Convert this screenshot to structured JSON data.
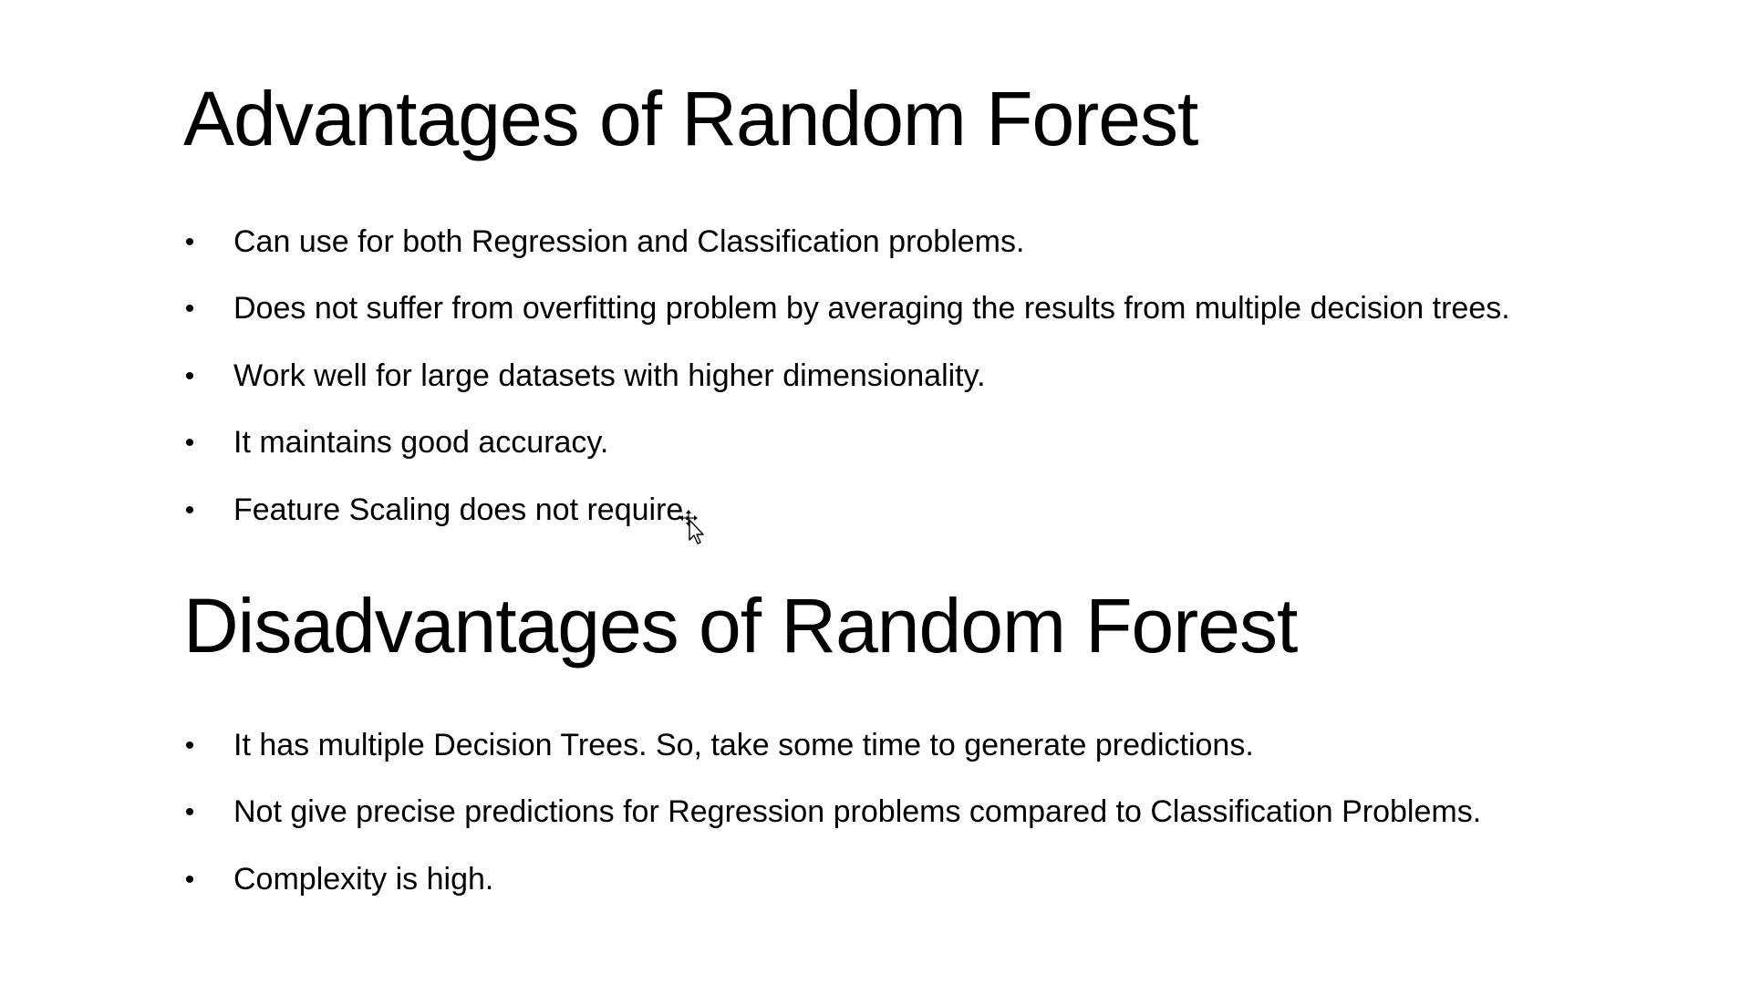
{
  "advantages": {
    "title": "Advantages of Random Forest",
    "items": [
      "Can use for both Regression and Classification problems.",
      "Does not suffer from overfitting problem by averaging the results from multiple decision trees.",
      "Work well for large datasets with higher dimensionality.",
      "It maintains good accuracy.",
      "Feature Scaling does not require."
    ]
  },
  "disadvantages": {
    "title": "Disadvantages of Random Forest",
    "items": [
      "It has multiple Decision Trees. So, take some time to generate predictions.",
      "Not give precise predictions for Regression problems compared to Classification Problems.",
      "Complexity is high."
    ]
  },
  "bullet_glyph": "•",
  "cursor": {
    "icon": "move-cursor-icon"
  }
}
